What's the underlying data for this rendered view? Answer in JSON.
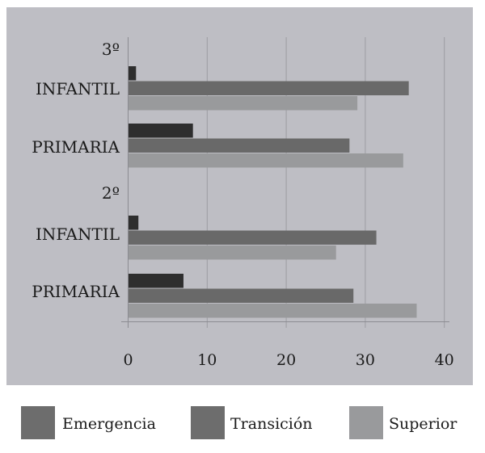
{
  "chart_data": {
    "type": "bar",
    "orientation": "horizontal",
    "title": "",
    "xlabel": "",
    "ylabel": "",
    "xlim": [
      0,
      40
    ],
    "ticks": [
      0,
      10,
      20,
      30,
      40
    ],
    "tick_labels": [
      "0",
      "10",
      "20",
      "30",
      "40"
    ],
    "grid": true,
    "legend_position": "bottom",
    "groups": [
      {
        "label": "3º",
        "categories": [
          {
            "label": "INFANTIL",
            "values": [
              1.0,
              35.5,
              29.0
            ]
          },
          {
            "label": "PRIMARIA",
            "values": [
              8.2,
              28.0,
              34.8
            ]
          }
        ]
      },
      {
        "label": "2º",
        "categories": [
          {
            "label": "INFANTIL",
            "values": [
              1.3,
              31.4,
              26.3
            ]
          },
          {
            "label": "PRIMARIA",
            "values": [
              7.0,
              28.5,
              36.5
            ]
          }
        ]
      }
    ],
    "series": [
      {
        "name": "Emergencia",
        "color": "#2e2e2e"
      },
      {
        "name": "Transición",
        "color": "#696969"
      },
      {
        "name": "Superior",
        "color": "#999a9c"
      }
    ]
  },
  "colors": {
    "plot_background": "#bebec4",
    "gridline": "#9c9ca2",
    "legend_emergencia": "#6d6d6d",
    "legend_transicion": "#6d6d6d",
    "legend_superior": "#999a9c"
  }
}
